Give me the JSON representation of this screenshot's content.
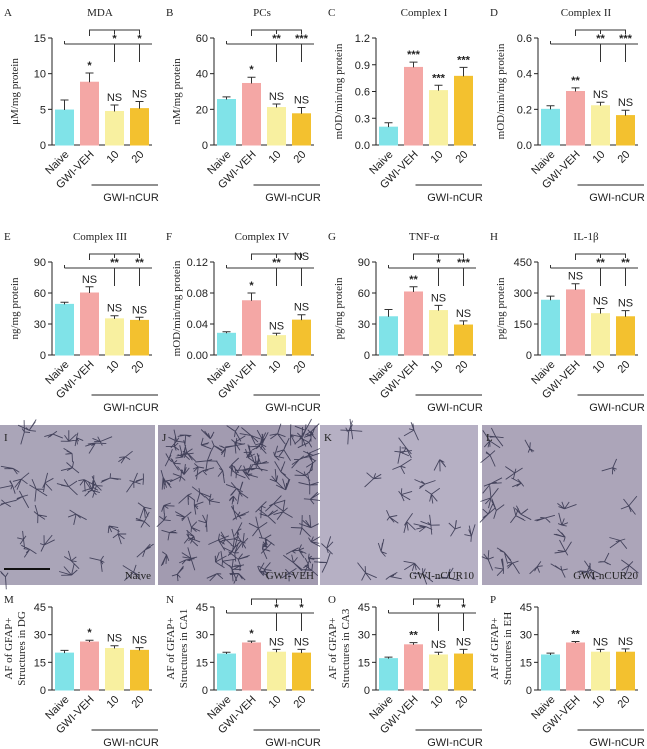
{
  "chart_data": [
    {
      "type": "bar",
      "panel": "A",
      "title": "MDA",
      "ylabel": "μM/mg protein",
      "categories": [
        "Naive",
        "GWI-VEH",
        "10",
        "20"
      ],
      "group_label": "GWI-nCUR",
      "colors": [
        "#80e3e8",
        "#f4a7a5",
        "#f8f0a0",
        "#f3c12f"
      ],
      "values": [
        4.9,
        8.8,
        4.7,
        5.1
      ],
      "errors": [
        1.4,
        1.3,
        0.9,
        1.0
      ],
      "annotations": [
        null,
        "*",
        "NS",
        "NS"
      ],
      "top_labels": [
        null,
        null,
        "*",
        "*"
      ],
      "ylim": [
        0,
        15
      ],
      "yticks": [
        0,
        5,
        10,
        15
      ]
    },
    {
      "type": "bar",
      "panel": "B",
      "title": "PCs",
      "ylabel": "nM/mg protein",
      "categories": [
        "Naive",
        "GWI-VEH",
        "10",
        "20"
      ],
      "group_label": "GWI-nCUR",
      "colors": [
        "#80e3e8",
        "#f4a7a5",
        "#f8f0a0",
        "#f3c12f"
      ],
      "values": [
        25.5,
        34.5,
        21,
        17.5
      ],
      "errors": [
        1.5,
        3.5,
        2,
        3.5
      ],
      "annotations": [
        null,
        "*",
        "NS",
        "NS"
      ],
      "top_labels": [
        null,
        null,
        "**",
        "***"
      ],
      "ylim": [
        0,
        60
      ],
      "yticks": [
        0,
        20,
        40,
        60
      ]
    },
    {
      "type": "bar",
      "panel": "C",
      "title": "Complex I",
      "ylabel": "mOD/min/mg protein",
      "categories": [
        "Naive",
        "GWI-VEH",
        "10",
        "20"
      ],
      "group_label": "GWI-nCUR",
      "colors": [
        "#80e3e8",
        "#f4a7a5",
        "#f8f0a0",
        "#f3c12f"
      ],
      "values": [
        0.2,
        0.87,
        0.61,
        0.77
      ],
      "errors": [
        0.05,
        0.06,
        0.06,
        0.1
      ],
      "annotations": [
        null,
        "***",
        "***",
        "***"
      ],
      "ylim": [
        0,
        1.2
      ],
      "yticks": [
        {
          "value": 0,
          "label": "0.0"
        },
        0.3,
        0.6,
        0.9,
        1.2
      ]
    },
    {
      "type": "bar",
      "panel": "D",
      "title": "Complex II",
      "ylabel": "mOD/min/mg protein",
      "categories": [
        "Naive",
        "GWI-VEH",
        "10",
        "20"
      ],
      "group_label": "GWI-nCUR",
      "colors": [
        "#80e3e8",
        "#f4a7a5",
        "#f8f0a0",
        "#f3c12f"
      ],
      "values": [
        0.2,
        0.3,
        0.22,
        0.165
      ],
      "errors": [
        0.02,
        0.02,
        0.02,
        0.03
      ],
      "annotations": [
        null,
        "**",
        "NS",
        "NS"
      ],
      "top_labels": [
        null,
        null,
        "**",
        "***"
      ],
      "ylim": [
        0,
        0.6
      ],
      "yticks": [
        {
          "value": 0,
          "label": "0.0"
        },
        0.2,
        0.4,
        0.6
      ]
    },
    {
      "type": "bar",
      "panel": "E",
      "title": "Complex III",
      "ylabel": "ng/mg protein",
      "categories": [
        "Naive",
        "GWI-VEH",
        "10",
        "20"
      ],
      "group_label": "GWI-nCUR",
      "colors": [
        "#80e3e8",
        "#f4a7a5",
        "#f8f0a0",
        "#f3c12f"
      ],
      "values": [
        49,
        60,
        35,
        33.5
      ],
      "errors": [
        2,
        6,
        3,
        3
      ],
      "annotations": [
        null,
        "NS",
        "NS",
        "NS"
      ],
      "top_labels": [
        null,
        null,
        "**",
        "**"
      ],
      "ylim": [
        0,
        90
      ],
      "yticks": [
        0,
        30,
        60,
        90
      ]
    },
    {
      "type": "bar",
      "panel": "F",
      "title": "Complex IV",
      "ylabel": "mOD/min/mg protein",
      "categories": [
        "Naive",
        "GWI-VEH",
        "10",
        "20"
      ],
      "group_label": "GWI-nCUR",
      "colors": [
        "#80e3e8",
        "#f4a7a5",
        "#f8f0a0",
        "#f3c12f"
      ],
      "values": [
        0.028,
        0.07,
        0.025,
        0.045
      ],
      "errors": [
        0.002,
        0.01,
        0.003,
        0.007
      ],
      "annotations": [
        null,
        "*",
        "NS",
        "NS"
      ],
      "top_labels": [
        null,
        null,
        "**",
        "NS"
      ],
      "ylim": [
        0,
        0.12
      ],
      "yticks": [
        {
          "value": 0,
          "label": "0.00"
        },
        {
          "value": 0.04,
          "label": "0.04"
        },
        {
          "value": 0.08,
          "label": "0.08"
        },
        {
          "value": 0.12,
          "label": "0.12"
        }
      ]
    },
    {
      "type": "bar",
      "panel": "G",
      "title": "TNF-α",
      "ylabel": "pg/mg protein",
      "categories": [
        "Naive",
        "GWI-VEH",
        "10",
        "20"
      ],
      "group_label": "GWI-nCUR",
      "colors": [
        "#80e3e8",
        "#f4a7a5",
        "#f8f0a0",
        "#f3c12f"
      ],
      "values": [
        37,
        61,
        43,
        29
      ],
      "errors": [
        7,
        5,
        5,
        4
      ],
      "annotations": [
        null,
        "**",
        "NS",
        "NS"
      ],
      "top_labels": [
        null,
        null,
        "*",
        "***"
      ],
      "ylim": [
        0,
        90
      ],
      "yticks": [
        0,
        30,
        60,
        90
      ]
    },
    {
      "type": "bar",
      "panel": "H",
      "title": "IL-1β",
      "ylabel": "pg/mg protein",
      "categories": [
        "Naive",
        "GWI-VEH",
        "10",
        "20"
      ],
      "group_label": "GWI-nCUR",
      "colors": [
        "#80e3e8",
        "#f4a7a5",
        "#f8f0a0",
        "#f3c12f"
      ],
      "values": [
        265,
        315,
        200,
        185
      ],
      "errors": [
        20,
        30,
        25,
        30
      ],
      "annotations": [
        null,
        "NS",
        "NS",
        "NS"
      ],
      "top_labels": [
        null,
        null,
        "**",
        "**"
      ],
      "ylim": [
        0,
        450
      ],
      "yticks": [
        0,
        150,
        300,
        450
      ]
    },
    {
      "type": "bar",
      "panel": "M",
      "ylabel": [
        "AF of GFAP+",
        "Structures in DG"
      ],
      "categories": [
        "Naive",
        "GWI-VEH",
        "10",
        "20"
      ],
      "group_label": "GWI-nCUR",
      "colors": [
        "#80e3e8",
        "#f4a7a5",
        "#f8f0a0",
        "#f3c12f"
      ],
      "values": [
        20,
        26,
        22.5,
        21.5
      ],
      "errors": [
        1.5,
        1,
        1.5,
        1.5
      ],
      "annotations": [
        null,
        "*",
        "NS",
        "NS"
      ],
      "ylim": [
        0,
        45
      ],
      "yticks": [
        0,
        15,
        30,
        45
      ]
    },
    {
      "type": "bar",
      "panel": "N",
      "ylabel": [
        "AF of GFAP+",
        "Structures in CA1"
      ],
      "categories": [
        "Naive",
        "GWI-VEH",
        "10",
        "20"
      ],
      "group_label": "GWI-nCUR",
      "colors": [
        "#80e3e8",
        "#f4a7a5",
        "#f8f0a0",
        "#f3c12f"
      ],
      "values": [
        19.5,
        25.5,
        20.5,
        20
      ],
      "errors": [
        1,
        1,
        1.5,
        2
      ],
      "annotations": [
        null,
        "*",
        "NS",
        "NS"
      ],
      "top_labels": [
        null,
        null,
        "*",
        "*"
      ],
      "ylim": [
        0,
        45
      ],
      "yticks": [
        0,
        15,
        30,
        45
      ]
    },
    {
      "type": "bar",
      "panel": "O",
      "ylabel": [
        "AF of GFAP+",
        "Structures in CA3"
      ],
      "categories": [
        "Naive",
        "GWI-VEH",
        "10",
        "20"
      ],
      "group_label": "GWI-nCUR",
      "colors": [
        "#80e3e8",
        "#f4a7a5",
        "#f8f0a0",
        "#f3c12f"
      ],
      "values": [
        17,
        24.5,
        19,
        19.5
      ],
      "errors": [
        0.8,
        1.2,
        1.5,
        2.5
      ],
      "annotations": [
        null,
        "**",
        "NS",
        "NS"
      ],
      "top_labels": [
        null,
        null,
        "*",
        "*"
      ],
      "ylim": [
        0,
        45
      ],
      "yticks": [
        0,
        15,
        30,
        45
      ]
    },
    {
      "type": "bar",
      "panel": "P",
      "ylabel": [
        "AF of GFAP+",
        "Structures in EH"
      ],
      "categories": [
        "Naive",
        "GWI-VEH",
        "10",
        "20"
      ],
      "group_label": "GWI-nCUR",
      "colors": [
        "#80e3e8",
        "#f4a7a5",
        "#f8f0a0",
        "#f3c12f"
      ],
      "values": [
        19,
        25.5,
        20.5,
        20.5
      ],
      "errors": [
        1,
        0.8,
        1.5,
        1.8
      ],
      "annotations": [
        null,
        "**",
        "NS",
        "NS"
      ],
      "ylim": [
        0,
        45
      ],
      "yticks": [
        0,
        15,
        30,
        45
      ]
    }
  ],
  "micrographs": [
    {
      "panel": "I",
      "label": "Naive"
    },
    {
      "panel": "J",
      "label": "GWI-VEH"
    },
    {
      "panel": "K",
      "label": "GWI-nCUR10"
    },
    {
      "panel": "L",
      "label": "GWI-nCUR20"
    }
  ]
}
